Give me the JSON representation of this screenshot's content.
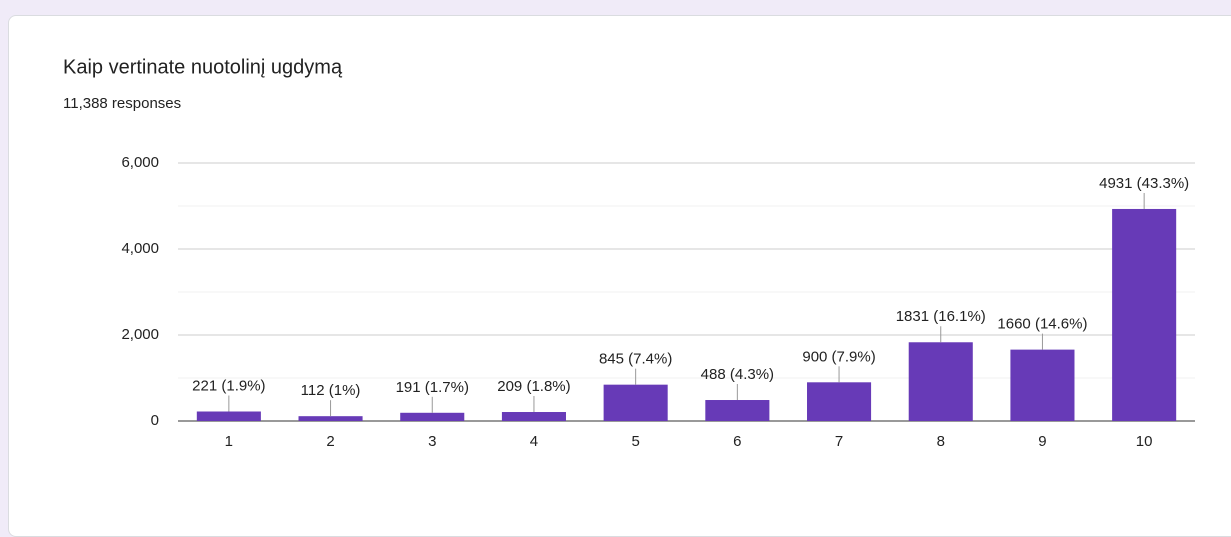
{
  "chart_data": {
    "type": "bar",
    "title": "Kaip vertinate nuotolinį ugdymą",
    "subtitle": "11,388 responses",
    "categories": [
      "1",
      "2",
      "3",
      "4",
      "5",
      "6",
      "7",
      "8",
      "9",
      "10"
    ],
    "values": [
      221,
      112,
      191,
      209,
      845,
      488,
      900,
      1831,
      1660,
      4931
    ],
    "value_labels": [
      "221 (1.9%)",
      "112 (1%)",
      "191 (1.7%)",
      "209 (1.8%)",
      "845 (7.4%)",
      "488 (4.3%)",
      "900 (7.9%)",
      "1831 (16.1%)",
      "1660 (14.6%)",
      "4931 (43.3%)"
    ],
    "color": "#673ab7",
    "ylim": [
      0,
      6000
    ],
    "yticks": [
      0,
      {
        "value": 2000,
        "label": "2,000"
      },
      {
        "value": 4000,
        "label": "4,000"
      },
      {
        "value": 6000,
        "label": "6,000"
      }
    ],
    "minor_yticks": [
      1000,
      3000,
      5000
    ],
    "grid": true
  }
}
